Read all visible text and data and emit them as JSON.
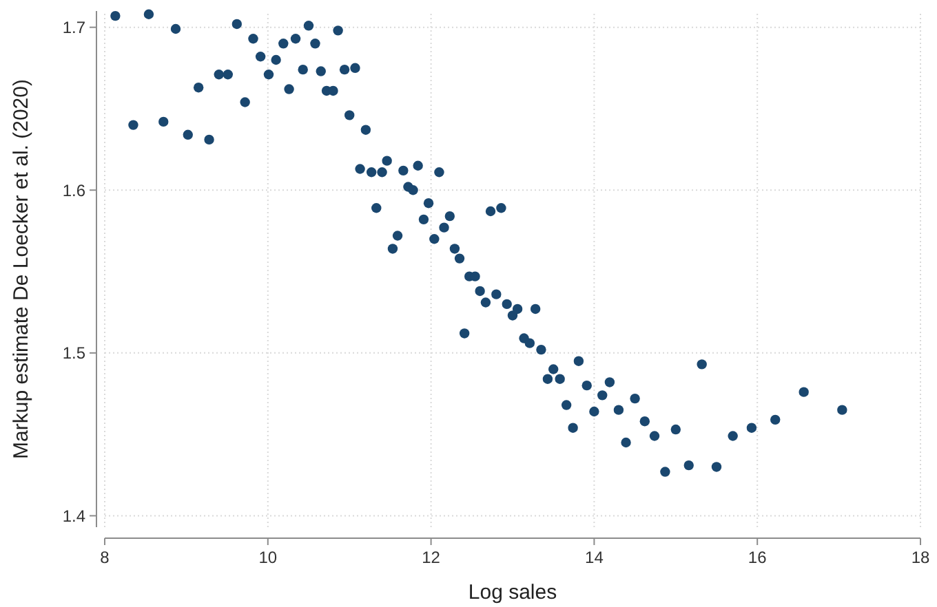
{
  "chart_data": {
    "type": "scatter",
    "xlabel": "Log sales",
    "ylabel": "Markup estimate De Loecker et al. (2020)",
    "x": [
      8.13,
      8.35,
      8.54,
      8.72,
      8.87,
      9.02,
      9.15,
      9.28,
      9.4,
      9.51,
      9.62,
      9.72,
      9.82,
      9.91,
      10.01,
      10.1,
      10.19,
      10.26,
      10.34,
      10.43,
      10.5,
      10.58,
      10.65,
      10.72,
      10.8,
      10.86,
      10.94,
      11.07,
      11.0,
      11.13,
      11.2,
      11.27,
      11.33,
      11.4,
      11.46,
      11.53,
      11.59,
      11.66,
      11.72,
      11.78,
      11.84,
      11.91,
      11.97,
      12.04,
      12.1,
      12.16,
      12.23,
      12.29,
      12.35,
      12.41,
      12.47,
      12.54,
      12.6,
      12.67,
      12.73,
      12.8,
      12.86,
      12.93,
      13.0,
      13.06,
      13.14,
      13.21,
      13.28,
      13.35,
      13.43,
      13.5,
      13.58,
      13.66,
      13.74,
      13.81,
      13.91,
      14.0,
      14.1,
      14.19,
      14.3,
      14.39,
      14.5,
      14.62,
      14.74,
      14.87,
      15.0,
      15.16,
      15.32,
      15.5,
      15.7,
      15.93,
      16.22,
      16.57,
      17.04
    ],
    "series": [
      {
        "color": "#1a476f",
        "values": [
          1.707,
          1.64,
          1.708,
          1.642,
          1.699,
          1.634,
          1.663,
          1.631,
          1.671,
          1.671,
          1.702,
          1.654,
          1.693,
          1.682,
          1.671,
          1.68,
          1.69,
          1.662,
          1.693,
          1.674,
          1.701,
          1.69,
          1.673,
          1.661,
          1.661,
          1.698,
          1.674,
          1.675,
          1.646,
          1.613,
          1.637,
          1.611,
          1.589,
          1.611,
          1.618,
          1.564,
          1.572,
          1.612,
          1.602,
          1.6,
          1.615,
          1.582,
          1.592,
          1.57,
          1.611,
          1.577,
          1.584,
          1.564,
          1.558,
          1.512,
          1.547,
          1.547,
          1.538,
          1.531,
          1.587,
          1.536,
          1.589,
          1.53,
          1.523,
          1.527,
          1.509,
          1.506,
          1.527,
          1.502,
          1.484,
          1.49,
          1.484,
          1.468,
          1.454,
          1.495,
          1.48,
          1.464,
          1.474,
          1.482,
          1.465,
          1.445,
          1.472,
          1.458,
          1.449,
          1.427,
          1.453,
          1.431,
          1.493,
          1.43,
          1.449,
          1.454,
          1.459,
          1.476,
          1.465
        ]
      }
    ],
    "xlim": [
      8,
      18
    ],
    "xticks": [
      8,
      10,
      12,
      14,
      16,
      18
    ],
    "ylim": [
      1.393,
      1.71
    ],
    "yticks": [
      1.4,
      1.5,
      1.6,
      1.7
    ],
    "grid": true,
    "marker": "circle"
  }
}
